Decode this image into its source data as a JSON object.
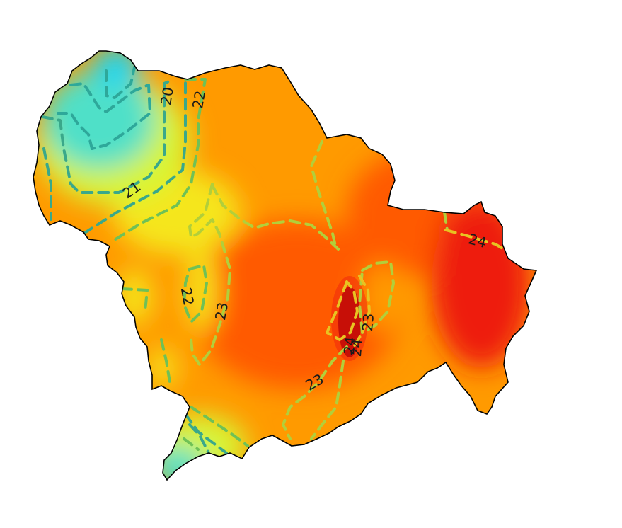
{
  "map": {
    "type": "contour-heatmap",
    "colormap": "jet",
    "colors": {
      "cyan": "#1fd6f0",
      "teal": "#4fe0c8",
      "yellow_green": "#d8f536",
      "yellow": "#f5e61a",
      "orange": "#ff9a00",
      "deep_orange": "#ff5a00",
      "red": "#ee1c10",
      "dark_red": "#a30000",
      "boundary": "#000000"
    },
    "contour_levels": [
      20,
      21,
      22,
      23,
      24
    ],
    "contour_colors": {
      "20": "#2ea89a",
      "21": "#3aa88a",
      "22": "#6fc156",
      "23": "#b2cf3a",
      "24": "#e8c321"
    },
    "labels": [
      {
        "id": "label-20-north",
        "text": "20"
      },
      {
        "id": "label-21-north",
        "text": "21"
      },
      {
        "id": "label-22-north",
        "text": "22"
      },
      {
        "id": "label-22-west",
        "text": "22"
      },
      {
        "id": "label-23-west",
        "text": "23"
      },
      {
        "id": "label-23-center",
        "text": "23"
      },
      {
        "id": "label-23-south",
        "text": "23"
      },
      {
        "id": "label-24-center",
        "text": "24"
      },
      {
        "id": "label-24-center-b",
        "text": "24"
      },
      {
        "id": "label-24-east",
        "text": "24"
      }
    ]
  }
}
